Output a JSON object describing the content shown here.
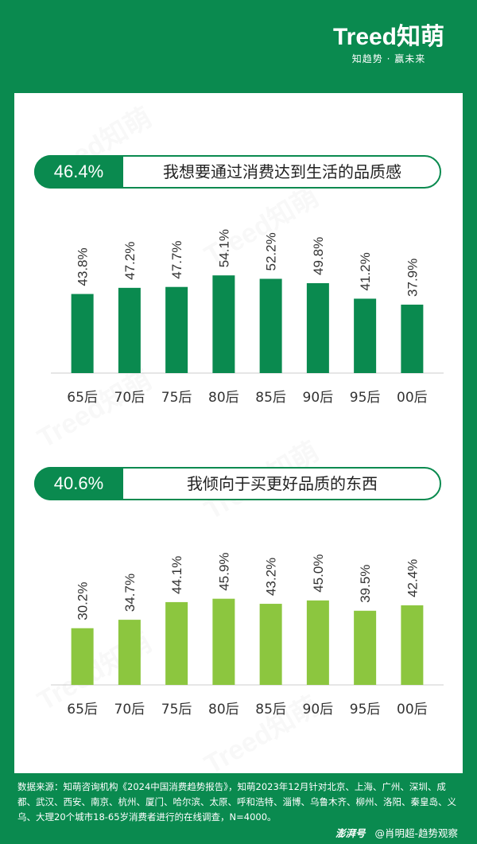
{
  "logo": {
    "brand": "Treed知萌",
    "tagline": "知趋势 · 赢未来"
  },
  "watermark": "Treed知萌",
  "chart_data": [
    {
      "type": "bar",
      "title": "我想要通过消费达到生活的品质感",
      "headline_value": "46.4%",
      "categories": [
        "65后",
        "70后",
        "75后",
        "80后",
        "85后",
        "90后",
        "95后",
        "00后"
      ],
      "values": [
        43.8,
        47.2,
        47.7,
        54.1,
        52.2,
        49.8,
        41.2,
        37.9
      ],
      "value_labels": [
        "43.8%",
        "47.2%",
        "47.7%",
        "54.1%",
        "52.2%",
        "49.8%",
        "41.2%",
        "37.9%"
      ],
      "color": "#0a8a4f",
      "ylim": [
        0,
        100
      ]
    },
    {
      "type": "bar",
      "title": "我倾向于买更好品质的东西",
      "headline_value": "40.6%",
      "categories": [
        "65后",
        "70后",
        "75后",
        "80后",
        "85后",
        "90后",
        "95后",
        "00后"
      ],
      "values": [
        30.2,
        34.7,
        44.1,
        45.9,
        43.2,
        45.0,
        39.5,
        42.4
      ],
      "value_labels": [
        "30.2%",
        "34.7%",
        "44.1%",
        "45.9%",
        "43.2%",
        "45.0%",
        "39.5%",
        "42.4%"
      ],
      "color": "#8cc63f",
      "ylim": [
        0,
        100
      ]
    }
  ],
  "source": "数据来源：知萌咨询机构《2024中国消费趋势报告》，知萌2023年12月针对北京、上海、广州、深圳、成都、武汉、西安、南京、杭州、厦门、哈尔滨、太原、呼和浩特、淄博、乌鲁木齐、柳州、洛阳、秦皇岛、义乌、大理20个城市18-65岁消费者进行的在线调查，N=4000。",
  "credit": {
    "brand": "澎湃号",
    "author": "@肖明超-趋势观察"
  }
}
